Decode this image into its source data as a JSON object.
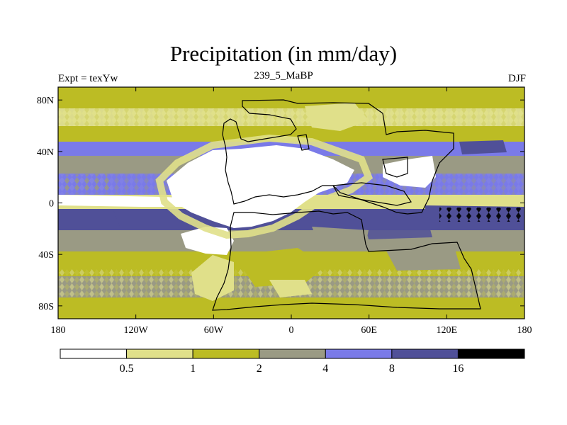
{
  "title": "Precipitation (in mm/day)",
  "subtitle_left": "Expt = texYw",
  "subtitle_center": "239_5_MaBP",
  "subtitle_right": "DJF",
  "lon_ticks": [
    "180",
    "120W",
    "60W",
    "0",
    "60E",
    "120E",
    "180"
  ],
  "lat_ticks": [
    "80N",
    "40N",
    "0",
    "40S",
    "80S"
  ],
  "colorbar": {
    "labels": [
      "0.5",
      "1",
      "2",
      "4",
      "8",
      "16"
    ],
    "colors": [
      "#ffffff",
      "#e0e08a",
      "#bcbc24",
      "#9a9a84",
      "#7a7ae8",
      "#505098",
      "#000000"
    ]
  }
}
